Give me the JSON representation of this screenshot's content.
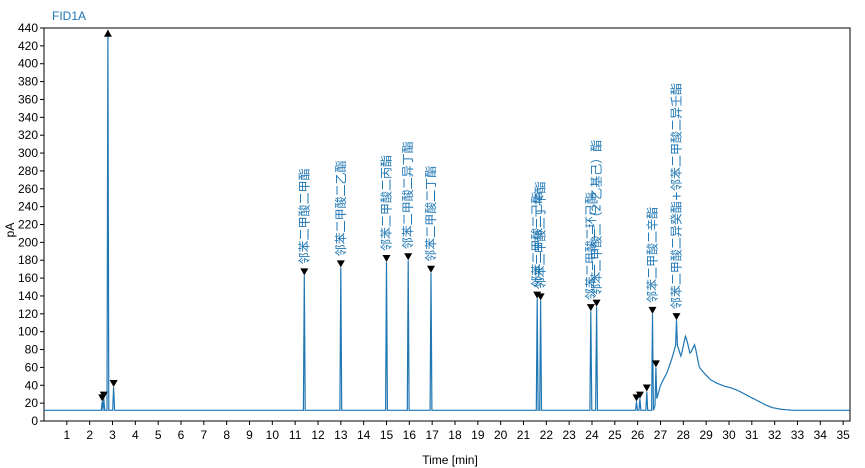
{
  "chart_data": {
    "type": "line",
    "signal_name": "FID1A",
    "xlabel": "Time [min]",
    "ylabel": "pA",
    "xlim": [
      0,
      35.3
    ],
    "ylim": [
      0,
      440
    ],
    "x_ticks": [
      1,
      2,
      3,
      4,
      5,
      6,
      7,
      8,
      9,
      10,
      11,
      12,
      13,
      14,
      15,
      16,
      17,
      18,
      19,
      20,
      21,
      22,
      23,
      24,
      25,
      26,
      27,
      28,
      29,
      30,
      31,
      32,
      33,
      34,
      35
    ],
    "y_ticks": [
      0,
      20,
      40,
      60,
      80,
      100,
      120,
      140,
      160,
      180,
      200,
      220,
      240,
      260,
      280,
      300,
      320,
      340,
      360,
      380,
      400,
      420,
      440
    ],
    "baseline": 12,
    "colors": {
      "trace": "#1f77b4",
      "marker": "#000000",
      "label": "#1f77b4",
      "title": "#1f77b4"
    },
    "peaks": [
      {
        "time": 2.55,
        "height": 22,
        "marker": "down"
      },
      {
        "time": 2.62,
        "height": 25,
        "marker": "down"
      },
      {
        "time": 2.8,
        "height": 438,
        "marker": "up"
      },
      {
        "time": 3.05,
        "height": 38,
        "marker": "down"
      },
      {
        "time": 11.4,
        "height": 163,
        "marker": "down",
        "label": "邻苯二甲酸二甲酯"
      },
      {
        "time": 13.0,
        "height": 172,
        "marker": "down",
        "label": "邻苯二甲酸二乙酯"
      },
      {
        "time": 15.0,
        "height": 178,
        "marker": "down",
        "label": "邻苯二甲酸二丙酯"
      },
      {
        "time": 15.95,
        "height": 180,
        "marker": "down",
        "label": "邻苯二甲酸二异丁酯"
      },
      {
        "time": 16.95,
        "height": 166,
        "marker": "down",
        "label": "邻苯二甲酸二丁酯"
      },
      {
        "time": 21.6,
        "height": 137,
        "marker": "down",
        "label": "邻苯二甲酸二己酯"
      },
      {
        "time": 21.75,
        "height": 135,
        "marker": "down",
        "label": "邻苯二甲酸二丁苄酯"
      },
      {
        "time": 23.95,
        "height": 123,
        "marker": "down",
        "label": "邻苯二甲酸二环己酯"
      },
      {
        "time": 24.2,
        "height": 128,
        "marker": "down",
        "label": "邻苯二甲酸二（2-乙基己）酯"
      },
      {
        "time": 25.95,
        "height": 22,
        "marker": "down"
      },
      {
        "time": 26.1,
        "height": 25,
        "marker": "down"
      },
      {
        "time": 26.4,
        "height": 33,
        "marker": "down"
      },
      {
        "time": 26.65,
        "height": 120,
        "marker": "down",
        "label": "邻苯二甲酸二辛酯"
      },
      {
        "time": 26.8,
        "height": 60,
        "marker": "down"
      },
      {
        "time": 27.7,
        "height": 113,
        "marker": "down",
        "label": "邻苯二甲酸二异癸酯+邻苯二甲酸二异壬酯"
      }
    ],
    "hump": [
      [
        26.7,
        12
      ],
      [
        27.0,
        40
      ],
      [
        27.3,
        55
      ],
      [
        27.5,
        70
      ],
      [
        27.7,
        88
      ],
      [
        27.9,
        72
      ],
      [
        28.1,
        96
      ],
      [
        28.3,
        75
      ],
      [
        28.5,
        86
      ],
      [
        28.7,
        60
      ],
      [
        28.9,
        54
      ],
      [
        29.2,
        46
      ],
      [
        29.5,
        42
      ],
      [
        29.8,
        39
      ],
      [
        30.1,
        37
      ],
      [
        30.4,
        34
      ],
      [
        30.7,
        30
      ],
      [
        31.0,
        26
      ],
      [
        31.3,
        22
      ],
      [
        31.6,
        18
      ],
      [
        31.9,
        15
      ],
      [
        32.3,
        13
      ],
      [
        32.8,
        12
      ],
      [
        35.3,
        12
      ]
    ],
    "grid": false
  }
}
